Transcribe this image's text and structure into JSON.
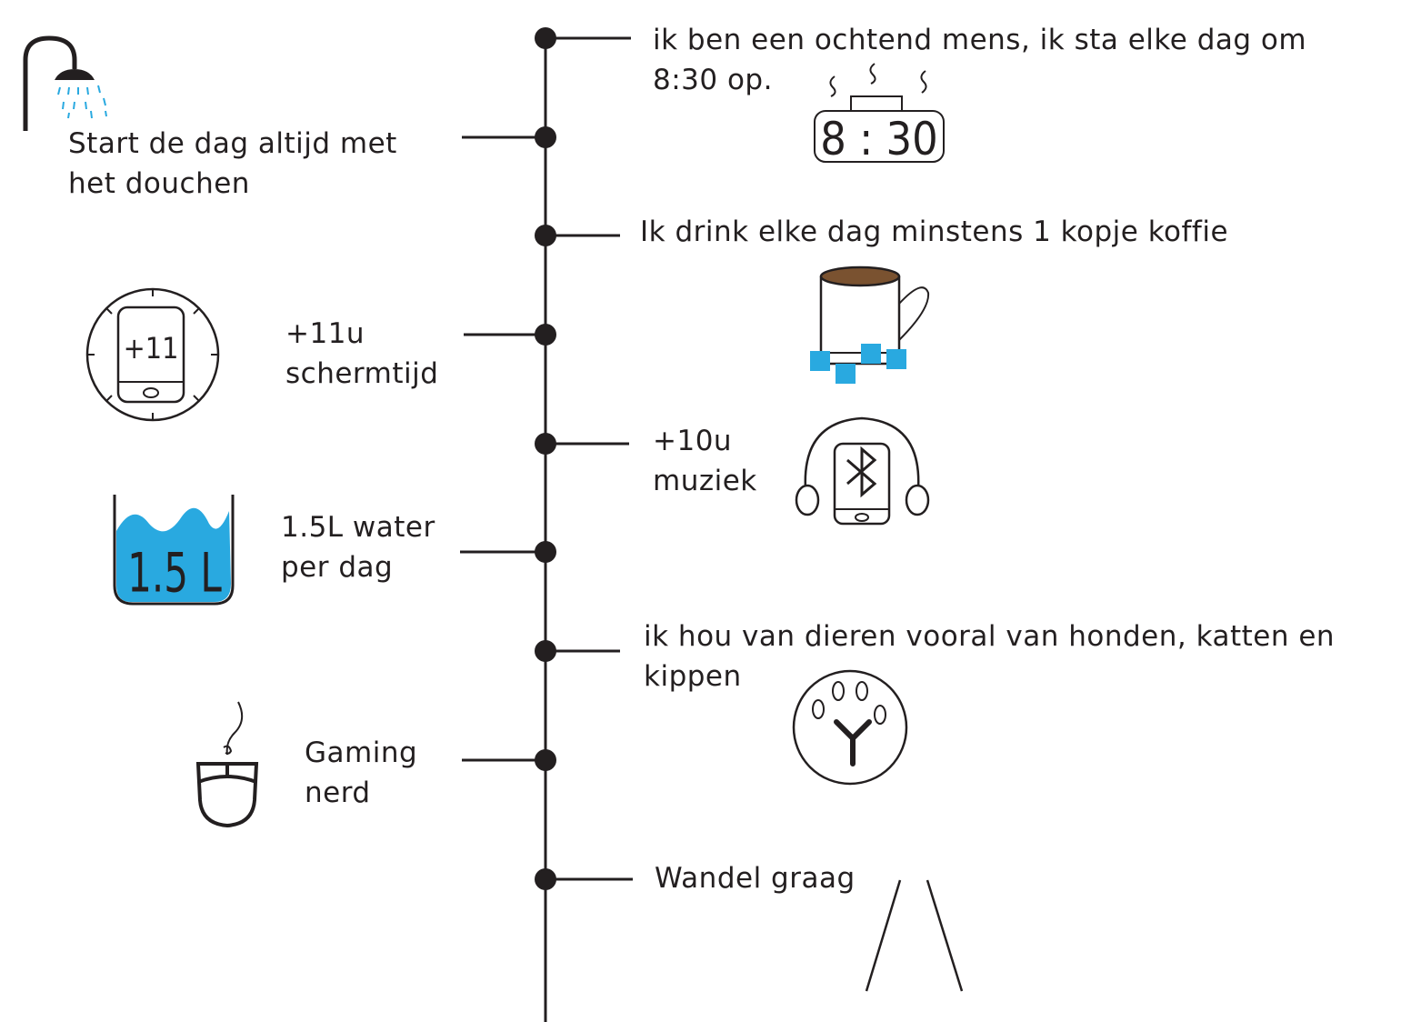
{
  "colors": {
    "ink": "#231f20",
    "accent_blue": "#29a9e0",
    "coffee": "#7a5230"
  },
  "timeline": {
    "items": [
      {
        "id": "wake",
        "side": "right",
        "lines": [
          "ik ben een ochtend mens, ik sta elke dag om",
          "8:30 op."
        ],
        "icon": "alarm-clock-icon",
        "icon_text": "8 : 30"
      },
      {
        "id": "shower",
        "side": "left",
        "lines": [
          "Start de dag altijd met",
          "het douchen"
        ],
        "icon": "shower-icon"
      },
      {
        "id": "coffee",
        "side": "right",
        "lines": [
          "Ik drink elke dag minstens 1 kopje koffie"
        ],
        "icon": "coffee-mug-icon"
      },
      {
        "id": "screen",
        "side": "left",
        "lines": [
          "+11u",
          "schermtijd"
        ],
        "icon": "phone-timer-icon",
        "icon_text": "+11"
      },
      {
        "id": "music",
        "side": "right",
        "lines": [
          "+10u",
          "muziek"
        ],
        "icon": "headphones-bluetooth-icon"
      },
      {
        "id": "water",
        "side": "left",
        "lines": [
          "1.5L water",
          "per dag"
        ],
        "icon": "water-glass-icon",
        "icon_text": "1.5 L"
      },
      {
        "id": "animals",
        "side": "right",
        "lines": [
          "ik hou van dieren vooral van honden, katten en",
          "kippen"
        ],
        "icon": "paw-icon"
      },
      {
        "id": "gaming",
        "side": "left",
        "lines": [
          "Gaming",
          "nerd"
        ],
        "icon": "mouse-icon"
      },
      {
        "id": "walk",
        "side": "right",
        "lines": [
          "Wandel graag"
        ],
        "icon": "walking-path-icon"
      }
    ]
  }
}
